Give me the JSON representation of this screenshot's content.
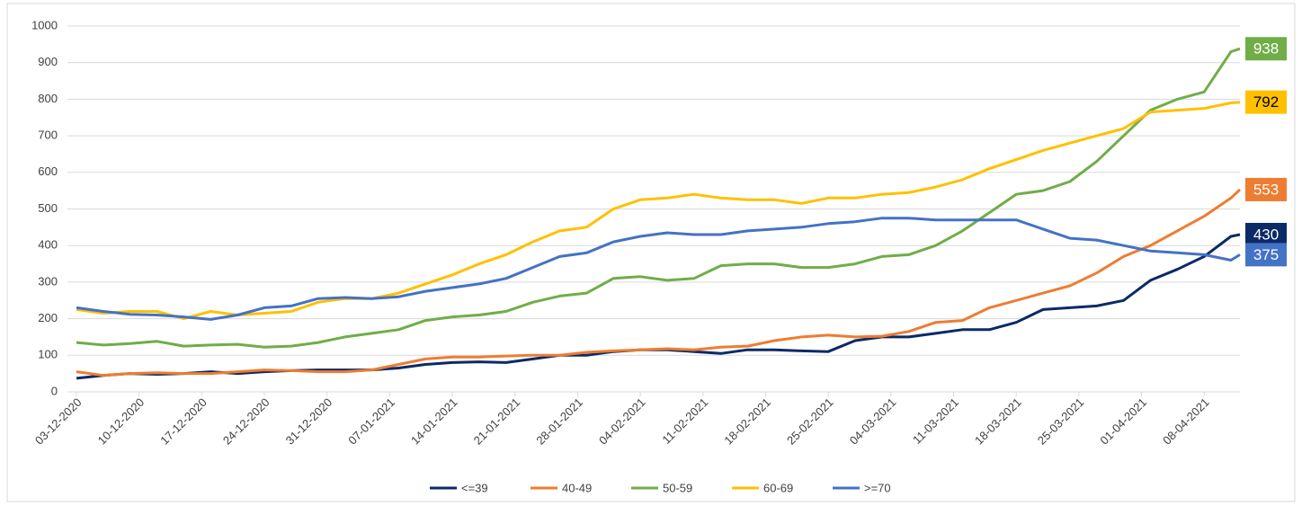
{
  "chart_data": {
    "type": "line",
    "x": [
      "03-12-2020",
      "06-12-2020",
      "09-12-2020",
      "12-12-2020",
      "15-12-2020",
      "18-12-2020",
      "21-12-2020",
      "24-12-2020",
      "27-12-2020",
      "30-12-2020",
      "02-01-2021",
      "05-01-2021",
      "08-01-2021",
      "11-01-2021",
      "14-01-2021",
      "17-01-2021",
      "20-01-2021",
      "23-01-2021",
      "26-01-2021",
      "29-01-2021",
      "01-02-2021",
      "04-02-2021",
      "07-02-2021",
      "10-02-2021",
      "13-02-2021",
      "16-02-2021",
      "19-02-2021",
      "22-02-2021",
      "25-02-2021",
      "28-02-2021",
      "03-03-2021",
      "06-03-2021",
      "09-03-2021",
      "12-03-2021",
      "15-03-2021",
      "18-03-2021",
      "21-03-2021",
      "24-03-2021",
      "27-03-2021",
      "30-03-2021",
      "02-04-2021",
      "05-04-2021",
      "08-04-2021",
      "11-04-2021",
      "12-04-2021"
    ],
    "series": [
      {
        "name": "<=39",
        "color": "#0b2a66",
        "values": [
          37,
          45,
          50,
          48,
          50,
          55,
          50,
          55,
          58,
          60,
          60,
          60,
          65,
          75,
          80,
          82,
          80,
          90,
          100,
          100,
          110,
          115,
          115,
          110,
          105,
          115,
          115,
          112,
          110,
          140,
          150,
          150,
          160,
          170,
          170,
          190,
          225,
          230,
          235,
          250,
          305,
          335,
          370,
          425,
          430
        ]
      },
      {
        "name": "40-49",
        "color": "#ed7d31",
        "values": [
          55,
          45,
          50,
          52,
          50,
          50,
          55,
          60,
          58,
          55,
          55,
          60,
          75,
          90,
          95,
          95,
          98,
          100,
          100,
          108,
          112,
          115,
          118,
          115,
          122,
          125,
          140,
          150,
          155,
          150,
          152,
          165,
          190,
          195,
          230,
          250,
          270,
          290,
          325,
          370,
          400,
          440,
          480,
          530,
          553
        ]
      },
      {
        "name": "50-59",
        "color": "#70ad47",
        "values": [
          135,
          128,
          132,
          138,
          125,
          128,
          130,
          122,
          125,
          135,
          150,
          160,
          170,
          195,
          205,
          210,
          220,
          245,
          262,
          270,
          310,
          315,
          305,
          310,
          345,
          350,
          350,
          340,
          340,
          350,
          370,
          375,
          400,
          440,
          490,
          540,
          550,
          575,
          630,
          700,
          770,
          800,
          820,
          930,
          938
        ]
      },
      {
        "name": "60-69",
        "color": "#ffc000",
        "values": [
          225,
          215,
          220,
          220,
          200,
          220,
          210,
          215,
          220,
          245,
          255,
          255,
          270,
          295,
          320,
          350,
          375,
          410,
          440,
          450,
          500,
          525,
          530,
          540,
          530,
          525,
          525,
          515,
          530,
          530,
          540,
          545,
          560,
          580,
          610,
          635,
          660,
          680,
          700,
          720,
          765,
          770,
          775,
          790,
          792
        ]
      },
      {
        "name": ">=70",
        "color": "#4472c4",
        "values": [
          230,
          220,
          212,
          210,
          205,
          198,
          210,
          230,
          235,
          255,
          258,
          255,
          260,
          275,
          285,
          295,
          310,
          340,
          370,
          380,
          410,
          425,
          435,
          430,
          430,
          440,
          445,
          450,
          460,
          465,
          475,
          475,
          470,
          470,
          470,
          470,
          445,
          420,
          415,
          400,
          385,
          380,
          375,
          360,
          375
        ]
      }
    ],
    "xticks": [
      "03-12-2020",
      "10-12-2020",
      "17-12-2020",
      "24-12-2020",
      "31-12-2020",
      "07-01-2021",
      "14-01-2021",
      "21-01-2021",
      "28-01-2021",
      "04-02-2021",
      "11-02-2021",
      "18-02-2021",
      "25-02-2021",
      "04-03-2021",
      "11-03-2021",
      "18-03-2021",
      "25-03-2021",
      "01-04-2021",
      "08-04-2021"
    ],
    "ylim": [
      0,
      1000
    ],
    "yticks": [
      0,
      100,
      200,
      300,
      400,
      500,
      600,
      700,
      800,
      900,
      1000
    ],
    "grid": true,
    "legend": "bottom",
    "end_labels": true
  }
}
